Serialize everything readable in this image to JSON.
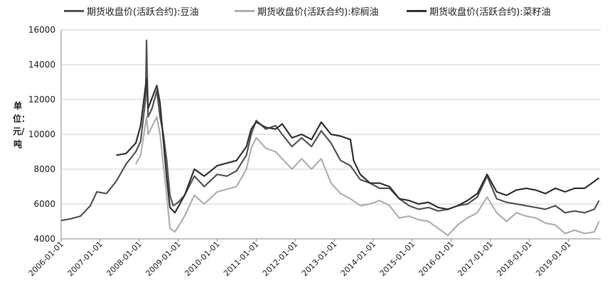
{
  "chart_data": {
    "type": "line",
    "ylabel": "单位：元/吨",
    "ylim": [
      4000,
      16000
    ],
    "yticks": [
      "4000",
      "6000",
      "8000",
      "10000",
      "12000",
      "14000",
      "16000"
    ],
    "xlim": [
      "2006-01-01",
      "2019-10-31"
    ],
    "xticks": [
      "2006-01-01",
      "2007-01-01",
      "2008-01-01",
      "2009-01-01",
      "2010-01-01",
      "2011-01-01",
      "2012-01-01",
      "2013-01-01",
      "2014-01-01",
      "2015-01-01",
      "2016-01-01",
      "2017-01-01",
      "2018-01-01",
      "2019-01-01"
    ],
    "grid": "horizontal",
    "legend_position": "top",
    "series": [
      {
        "name": "期货收盘价(活跃合约):豆油",
        "color": "#555555",
        "points": [
          [
            "2006-01-01",
            5050
          ],
          [
            "2006-04-01",
            5150
          ],
          [
            "2006-07-01",
            5300
          ],
          [
            "2006-10-01",
            5900
          ],
          [
            "2006-12-01",
            6700
          ],
          [
            "2007-03-01",
            6600
          ],
          [
            "2007-06-01",
            7300
          ],
          [
            "2007-09-01",
            8300
          ],
          [
            "2007-12-01",
            9000
          ],
          [
            "2008-01-15",
            9600
          ],
          [
            "2008-03-01",
            12000
          ],
          [
            "2008-03-10",
            15400
          ],
          [
            "2008-03-25",
            11000
          ],
          [
            "2008-05-01",
            11500
          ],
          [
            "2008-06-15",
            12500
          ],
          [
            "2008-07-15",
            11000
          ],
          [
            "2008-08-15",
            10000
          ],
          [
            "2008-09-15",
            8500
          ],
          [
            "2008-10-15",
            6500
          ],
          [
            "2008-11-15",
            5900
          ],
          [
            "2009-01-01",
            6100
          ],
          [
            "2009-03-01",
            6500
          ],
          [
            "2009-06-01",
            7600
          ],
          [
            "2009-09-01",
            7000
          ],
          [
            "2010-01-01",
            7700
          ],
          [
            "2010-04-01",
            7600
          ],
          [
            "2010-07-01",
            7900
          ],
          [
            "2010-10-01",
            8800
          ],
          [
            "2010-11-15",
            10000
          ],
          [
            "2011-01-01",
            10800
          ],
          [
            "2011-04-01",
            10300
          ],
          [
            "2011-07-01",
            10500
          ],
          [
            "2011-09-01",
            10000
          ],
          [
            "2011-12-01",
            9300
          ],
          [
            "2012-03-01",
            9800
          ],
          [
            "2012-06-01",
            9300
          ],
          [
            "2012-09-01",
            10200
          ],
          [
            "2012-12-01",
            9500
          ],
          [
            "2013-03-01",
            8500
          ],
          [
            "2013-06-01",
            8200
          ],
          [
            "2013-09-01",
            7400
          ],
          [
            "2013-12-01",
            7200
          ],
          [
            "2014-03-01",
            6900
          ],
          [
            "2014-06-01",
            6900
          ],
          [
            "2014-09-01",
            6300
          ],
          [
            "2014-12-01",
            5900
          ],
          [
            "2015-03-01",
            5700
          ],
          [
            "2015-06-01",
            5800
          ],
          [
            "2015-09-01",
            5600
          ],
          [
            "2015-12-01",
            5700
          ],
          [
            "2016-03-01",
            5900
          ],
          [
            "2016-06-01",
            6000
          ],
          [
            "2016-09-01",
            6400
          ],
          [
            "2016-12-01",
            7600
          ],
          [
            "2017-03-01",
            6300
          ],
          [
            "2017-06-01",
            6100
          ],
          [
            "2017-09-01",
            6000
          ],
          [
            "2017-12-01",
            5900
          ],
          [
            "2018-03-01",
            5800
          ],
          [
            "2018-06-01",
            5700
          ],
          [
            "2018-09-01",
            5900
          ],
          [
            "2018-12-01",
            5500
          ],
          [
            "2019-03-01",
            5600
          ],
          [
            "2019-06-01",
            5500
          ],
          [
            "2019-09-01",
            5700
          ],
          [
            "2019-10-15",
            6200
          ]
        ]
      },
      {
        "name": "期货收盘价(活跃合约):棕榈油",
        "color": "#b0b0b0",
        "points": [
          [
            "2007-12-01",
            8300
          ],
          [
            "2008-01-15",
            8800
          ],
          [
            "2008-03-10",
            11000
          ],
          [
            "2008-03-25",
            10000
          ],
          [
            "2008-06-15",
            11000
          ],
          [
            "2008-07-15",
            10000
          ],
          [
            "2008-09-15",
            6500
          ],
          [
            "2008-10-15",
            4600
          ],
          [
            "2008-12-01",
            4400
          ],
          [
            "2009-03-01",
            5300
          ],
          [
            "2009-06-01",
            6500
          ],
          [
            "2009-09-01",
            6000
          ],
          [
            "2010-01-01",
            6700
          ],
          [
            "2010-07-01",
            7000
          ],
          [
            "2010-10-01",
            8000
          ],
          [
            "2010-11-15",
            9200
          ],
          [
            "2011-01-01",
            9800
          ],
          [
            "2011-04-01",
            9200
          ],
          [
            "2011-07-01",
            9000
          ],
          [
            "2011-09-01",
            8600
          ],
          [
            "2011-12-01",
            8000
          ],
          [
            "2012-03-01",
            8600
          ],
          [
            "2012-06-01",
            8000
          ],
          [
            "2012-09-01",
            8600
          ],
          [
            "2012-12-01",
            7200
          ],
          [
            "2013-03-01",
            6600
          ],
          [
            "2013-06-01",
            6300
          ],
          [
            "2013-09-01",
            5900
          ],
          [
            "2013-12-01",
            6000
          ],
          [
            "2014-03-01",
            6200
          ],
          [
            "2014-06-01",
            5900
          ],
          [
            "2014-09-01",
            5200
          ],
          [
            "2014-12-01",
            5300
          ],
          [
            "2015-03-01",
            5100
          ],
          [
            "2015-06-01",
            5000
          ],
          [
            "2015-09-01",
            4600
          ],
          [
            "2015-12-01",
            4200
          ],
          [
            "2016-03-01",
            4800
          ],
          [
            "2016-06-01",
            5200
          ],
          [
            "2016-09-01",
            5500
          ],
          [
            "2016-12-01",
            6400
          ],
          [
            "2017-03-01",
            5500
          ],
          [
            "2017-06-01",
            5000
          ],
          [
            "2017-09-01",
            5500
          ],
          [
            "2017-12-01",
            5300
          ],
          [
            "2018-03-01",
            5200
          ],
          [
            "2018-06-01",
            4900
          ],
          [
            "2018-09-01",
            4800
          ],
          [
            "2018-12-01",
            4300
          ],
          [
            "2019-03-01",
            4500
          ],
          [
            "2019-06-01",
            4300
          ],
          [
            "2019-09-01",
            4400
          ],
          [
            "2019-10-15",
            5000
          ]
        ]
      },
      {
        "name": "期货收盘价(活跃合约):菜籽油",
        "color": "#333333",
        "points": [
          [
            "2007-06-01",
            8800
          ],
          [
            "2007-09-01",
            8900
          ],
          [
            "2007-12-01",
            9500
          ],
          [
            "2008-01-15",
            10500
          ],
          [
            "2008-03-10",
            13200
          ],
          [
            "2008-03-25",
            11500
          ],
          [
            "2008-06-15",
            12800
          ],
          [
            "2008-07-15",
            11800
          ],
          [
            "2008-09-15",
            7500
          ],
          [
            "2008-10-15",
            5800
          ],
          [
            "2008-12-01",
            5500
          ],
          [
            "2009-03-01",
            6500
          ],
          [
            "2009-06-01",
            8000
          ],
          [
            "2009-09-01",
            7600
          ],
          [
            "2010-01-01",
            8200
          ],
          [
            "2010-07-01",
            8500
          ],
          [
            "2010-10-01",
            9300
          ],
          [
            "2010-11-15",
            10300
          ],
          [
            "2011-01-01",
            10700
          ],
          [
            "2011-04-01",
            10400
          ],
          [
            "2011-07-01",
            10300
          ],
          [
            "2011-09-01",
            10600
          ],
          [
            "2011-12-01",
            9800
          ],
          [
            "2012-03-01",
            10000
          ],
          [
            "2012-06-01",
            9700
          ],
          [
            "2012-09-01",
            10700
          ],
          [
            "2012-12-01",
            10000
          ],
          [
            "2013-03-01",
            9900
          ],
          [
            "2013-06-01",
            9700
          ],
          [
            "2013-07-01",
            8500
          ],
          [
            "2013-09-01",
            7700
          ],
          [
            "2013-12-01",
            7200
          ],
          [
            "2014-03-01",
            7200
          ],
          [
            "2014-06-01",
            7000
          ],
          [
            "2014-09-01",
            6300
          ],
          [
            "2014-12-01",
            6200
          ],
          [
            "2015-03-01",
            6000
          ],
          [
            "2015-06-01",
            6100
          ],
          [
            "2015-09-01",
            5800
          ],
          [
            "2015-12-01",
            5700
          ],
          [
            "2016-03-01",
            5900
          ],
          [
            "2016-06-01",
            6200
          ],
          [
            "2016-09-01",
            6600
          ],
          [
            "2016-12-01",
            7700
          ],
          [
            "2017-03-01",
            6700
          ],
          [
            "2017-06-01",
            6500
          ],
          [
            "2017-09-01",
            6800
          ],
          [
            "2017-12-01",
            6900
          ],
          [
            "2018-03-01",
            6800
          ],
          [
            "2018-06-01",
            6600
          ],
          [
            "2018-09-01",
            6900
          ],
          [
            "2018-12-01",
            6700
          ],
          [
            "2019-03-01",
            6900
          ],
          [
            "2019-06-01",
            6900
          ],
          [
            "2019-09-01",
            7300
          ],
          [
            "2019-10-15",
            7500
          ]
        ]
      }
    ]
  }
}
